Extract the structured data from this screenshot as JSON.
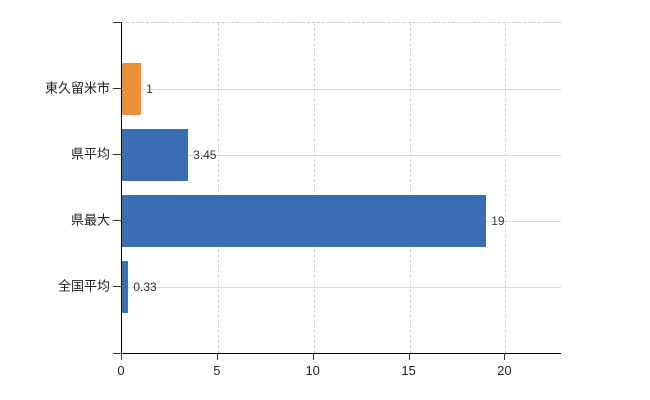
{
  "chart_data": {
    "type": "bar",
    "orientation": "horizontal",
    "title": "",
    "xlabel": "",
    "ylabel": "",
    "categories": [
      "東久留米市",
      "県平均",
      "県最大",
      "全国平均"
    ],
    "values": [
      1,
      3.45,
      19,
      0.33
    ],
    "value_labels": [
      "1",
      "3.45",
      "19",
      "0.33"
    ],
    "bar_colors": [
      "#e8913d",
      "#3b6db1",
      "#3b6db1",
      "#3b6db1"
    ],
    "xlim": [
      0,
      22.9
    ],
    "x_ticks": [
      0,
      5,
      10,
      15,
      20
    ],
    "x_tick_labels": [
      "0",
      "5",
      "10",
      "15",
      "20"
    ],
    "grid": true,
    "legend": false
  },
  "colors": {
    "axis": "#000000",
    "horizontal_gridline": "#d9d9d9",
    "vertical_gridline": "#d2d2d2",
    "top_border_dashed": "#c9c9c9",
    "tick": "#333333",
    "category_text": "#222222",
    "value_text": "#333333",
    "background": "#ffffff"
  }
}
